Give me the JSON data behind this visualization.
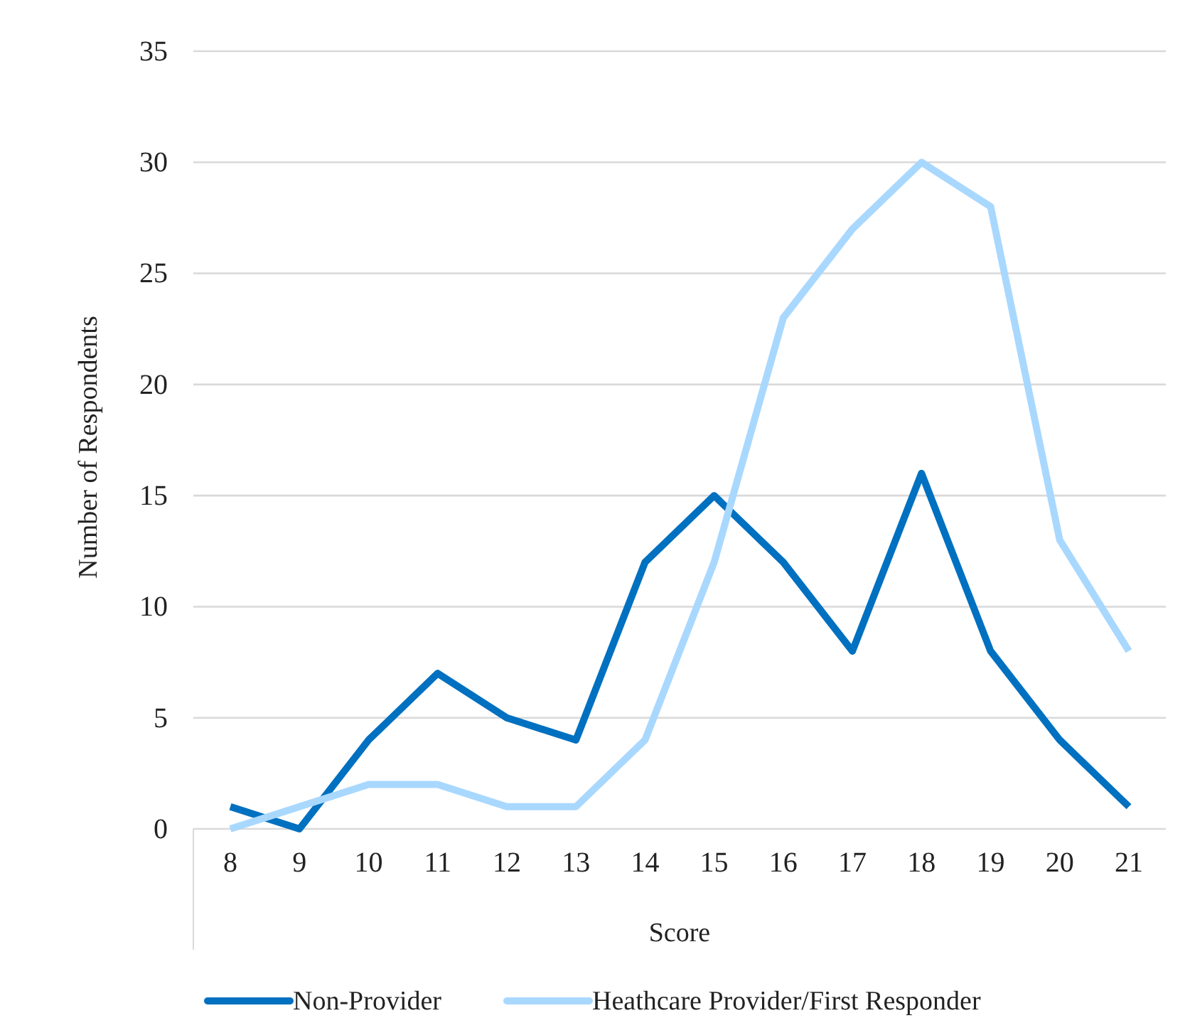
{
  "chart_data": {
    "type": "line",
    "xlabel": "Score",
    "ylabel": "Number of Respondents",
    "categories": [
      "8",
      "9",
      "10",
      "11",
      "12",
      "13",
      "14",
      "15",
      "16",
      "17",
      "18",
      "19",
      "20",
      "21"
    ],
    "series": [
      {
        "name": "Non-Provider",
        "color": "#0070c0",
        "values": [
          1,
          0,
          4,
          7,
          5,
          4,
          12,
          15,
          12,
          8,
          16,
          8,
          4,
          1
        ]
      },
      {
        "name": "Heathcare Provider/First Responder",
        "color": "#a9d8ff",
        "values": [
          0,
          1,
          2,
          2,
          1,
          1,
          4,
          12,
          23,
          27,
          30,
          28,
          13,
          8
        ]
      }
    ],
    "ylim": [
      0,
      35
    ],
    "yticks": [
      0,
      5,
      10,
      15,
      20,
      25,
      30,
      35
    ],
    "grid": "y",
    "legend": "bottom",
    "marker": "none",
    "line_style": "solid"
  }
}
